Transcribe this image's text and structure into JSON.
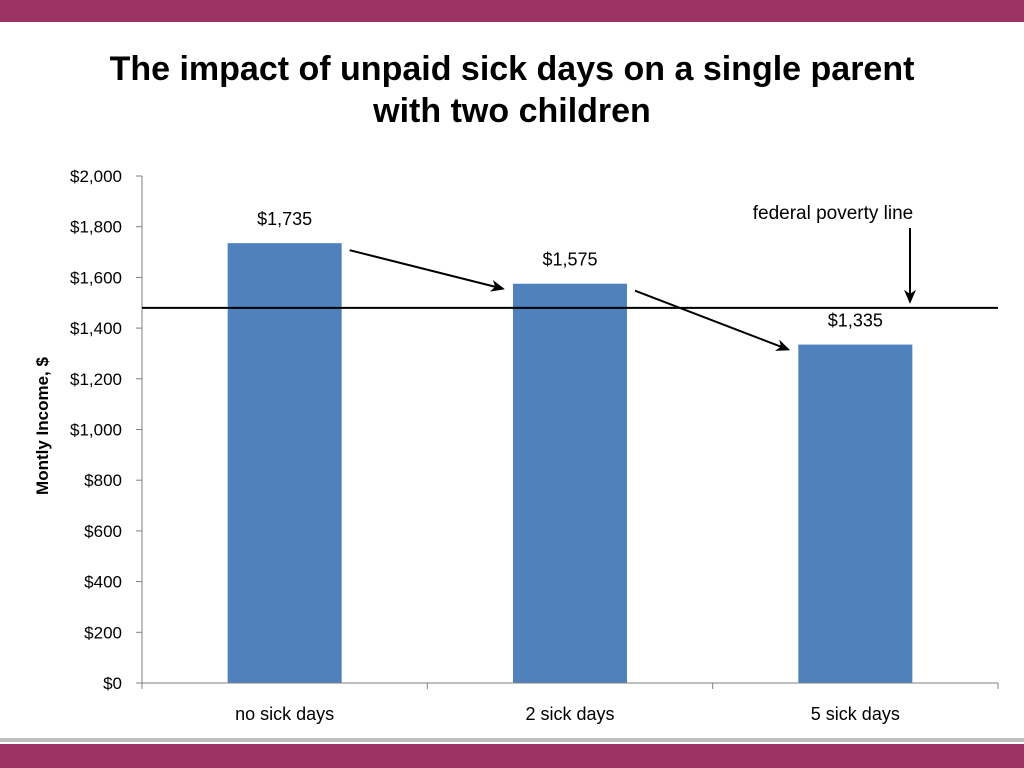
{
  "theme": {
    "band_color": "#9b3462",
    "bar_color": "#4f81bd",
    "axis_color": "#7f7f7f",
    "line_color": "#000000"
  },
  "chart_data": {
    "type": "bar",
    "title": "The impact of unpaid sick days on a single parent\nwith two children",
    "xlabel": "",
    "ylabel": "Montly Income, $",
    "categories": [
      "no sick days",
      "2 sick days",
      "5 sick days"
    ],
    "values": [
      1735,
      1575,
      1335
    ],
    "data_labels": [
      "$1,735",
      "$1,575",
      "$1,335"
    ],
    "ylim": [
      0,
      2000
    ],
    "yticks": [
      0,
      200,
      400,
      600,
      800,
      1000,
      1200,
      1400,
      1600,
      1800,
      2000
    ],
    "ytick_labels": [
      "$0",
      "$200",
      "$400",
      "$600",
      "$800",
      "$1,000",
      "$1,200",
      "$1,400",
      "$1,600",
      "$1,800",
      "$2,000"
    ],
    "grid": false,
    "legend": "none",
    "reference_line": {
      "label": "federal poverty line",
      "value": 1480
    }
  }
}
